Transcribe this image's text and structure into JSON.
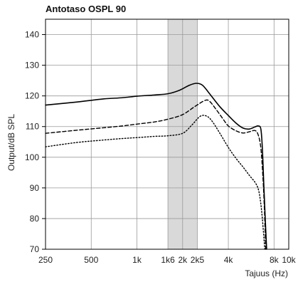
{
  "chart_data": {
    "type": "line",
    "title": "Antotaso OSPL 90",
    "xlabel": "Tajuus (Hz)",
    "ylabel": "Output/dB SPL",
    "x_scale": "log",
    "xlim": [
      250,
      10000
    ],
    "ylim": [
      70,
      145
    ],
    "grid": true,
    "x_ticks": [
      {
        "value": 250,
        "label": "250"
      },
      {
        "value": 500,
        "label": "500"
      },
      {
        "value": 1000,
        "label": "1k"
      },
      {
        "value": 1600,
        "label": "1k6"
      },
      {
        "value": 2000,
        "label": "2k"
      },
      {
        "value": 2500,
        "label": "2k5"
      },
      {
        "value": 4000,
        "label": "4k"
      },
      {
        "value": 8000,
        "label": "8k"
      },
      {
        "value": 10000,
        "label": "10k"
      }
    ],
    "y_ticks": [
      70,
      80,
      90,
      100,
      110,
      120,
      130,
      140
    ],
    "shaded_band": {
      "x_start": 1600,
      "x_end": 2500,
      "color": "#d9d9d9"
    },
    "series": [
      {
        "style": "solid",
        "x": [
          250,
          400,
          600,
          800,
          1000,
          1300,
          1600,
          1900,
          2200,
          2450,
          2700,
          3000,
          3500,
          4000,
          4500,
          5000,
          5500,
          6000,
          6300,
          6550,
          6700,
          6850,
          7000,
          7150
        ],
        "y": [
          117,
          118,
          119,
          119.4,
          119.9,
          120.3,
          120.7,
          121.8,
          123.4,
          124.1,
          123.5,
          120.8,
          116.6,
          113.6,
          111.1,
          109.5,
          109.2,
          109.9,
          110.2,
          109.2,
          103,
          91,
          80,
          70
        ]
      },
      {
        "style": "dashed",
        "x": [
          250,
          400,
          600,
          800,
          1000,
          1300,
          1600,
          2000,
          2400,
          2800,
          3000,
          3300,
          3700,
          4000,
          4500,
          5000,
          5500,
          6000,
          6300,
          6550,
          6750,
          6900,
          7050
        ],
        "y": [
          107.8,
          108.8,
          109.6,
          110.2,
          110.8,
          111.5,
          112.4,
          113.9,
          116.5,
          118.5,
          118.3,
          115.8,
          112.4,
          110.2,
          108.6,
          107.9,
          108.3,
          108.7,
          107.2,
          103,
          94,
          84,
          70
        ]
      },
      {
        "style": "dotted",
        "x": [
          250,
          400,
          600,
          800,
          1000,
          1300,
          1600,
          2000,
          2300,
          2600,
          2850,
          3100,
          3500,
          4000,
          4500,
          5000,
          5500,
          6000,
          6300,
          6500,
          6700,
          6950
        ],
        "y": [
          103.4,
          104.8,
          105.6,
          106.1,
          106.4,
          106.8,
          107,
          107.8,
          110.5,
          113.3,
          113.5,
          112,
          108,
          103.2,
          99.6,
          96.8,
          94.1,
          91.8,
          89.6,
          86,
          80,
          70
        ]
      }
    ]
  }
}
